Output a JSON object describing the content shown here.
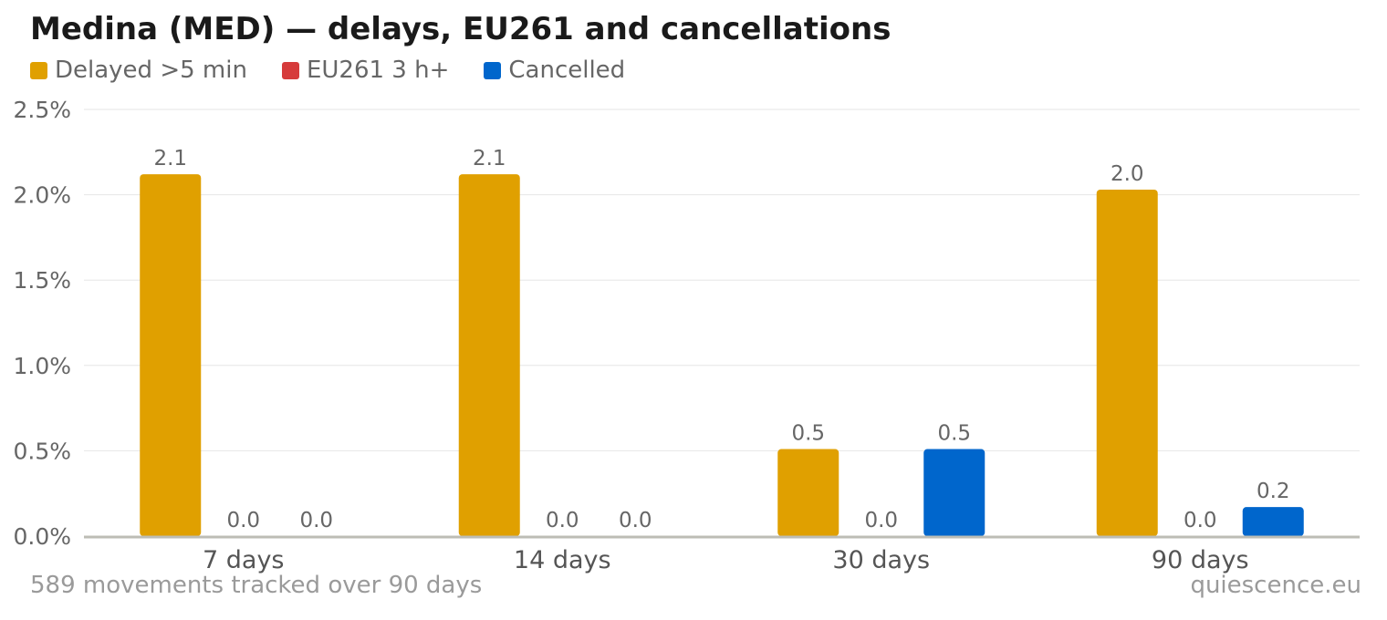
{
  "title": "Medina (MED) — delays, EU261 and cancellations",
  "footer": {
    "left": "589 movements tracked over 90 days",
    "right": "quiescence.eu"
  },
  "chart_data": {
    "type": "bar",
    "categories": [
      "7 days",
      "14 days",
      "30 days",
      "90 days"
    ],
    "series": [
      {
        "name": "Delayed >5 min",
        "color": "#E0A000",
        "values": [
          2.12,
          2.12,
          0.51,
          2.03
        ],
        "labels": [
          "2.1",
          "2.1",
          "0.5",
          "2.0"
        ]
      },
      {
        "name": "EU261 3 h+",
        "color": "#D63B3B",
        "values": [
          0,
          0,
          0,
          0
        ],
        "labels": [
          "0.0",
          "0.0",
          "0.0",
          "0.0"
        ]
      },
      {
        "name": "Cancelled",
        "color": "#0066CC",
        "values": [
          0,
          0,
          0.51,
          0.17
        ],
        "labels": [
          "0.0",
          "0.0",
          "0.5",
          "0.2"
        ]
      }
    ],
    "ylim": [
      0,
      2.5
    ],
    "yticks": [
      "0.0%",
      "0.5%",
      "1.0%",
      "1.5%",
      "2.0%",
      "2.5%"
    ],
    "ytick_values": [
      0,
      0.5,
      1.0,
      1.5,
      2.0,
      2.5
    ],
    "grid": true,
    "legend_position": "top-left"
  }
}
